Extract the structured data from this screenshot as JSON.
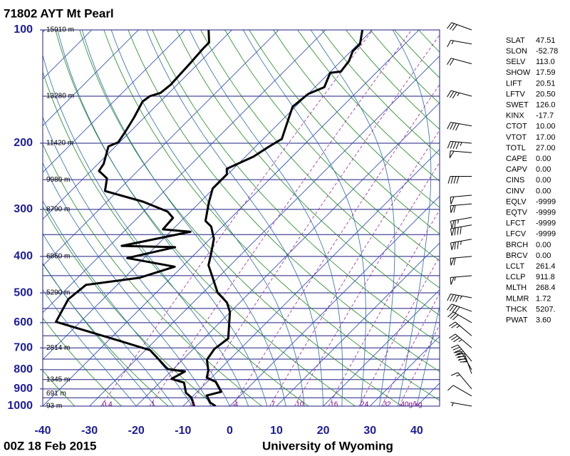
{
  "chart_data": {
    "type": "skewt",
    "title": "71802 AYT Mt Pearl",
    "date": "00Z 18 Feb 2015",
    "source": "University of Wyoming",
    "ylog": true,
    "ylim": [
      1000,
      100
    ],
    "yticks": [
      100,
      200,
      300,
      400,
      500,
      600,
      700,
      800,
      900,
      1000
    ],
    "isobars": [
      100,
      150,
      200,
      250,
      300,
      350,
      400,
      450,
      500,
      550,
      600,
      650,
      700,
      750,
      800,
      850,
      900,
      950,
      1000
    ],
    "xlim": [
      -40,
      44.9
    ],
    "xticks": [
      -40,
      -30,
      -20,
      -10,
      0,
      10,
      20,
      30,
      40
    ],
    "heights": {
      "pressure": [
        100,
        150,
        200,
        250,
        300,
        400,
        500,
        700,
        850,
        925,
        1000
      ],
      "labels": [
        "15910 m",
        "13280 m",
        "11420 m",
        "9980 m",
        "8790 m",
        "6860 m",
        "5290 m",
        "2814 m",
        "1345 m",
        "691 m",
        "93 m"
      ]
    },
    "mixing_ratios": [
      0.4,
      1,
      2,
      4,
      7,
      10,
      16,
      24,
      32,
      {
        "value": 40,
        "label": "40g/kg"
      }
    ],
    "series": [
      {
        "color": "#000000",
        "pressure": [
          100,
          109,
          114,
          121,
          129,
          130,
          142,
          148,
          160,
          179,
          195,
          204,
          217,
          234,
          242,
          256,
          264,
          288,
          322,
          333,
          359,
          396,
          422,
          452,
          498,
          531,
          562,
          661,
          705,
          753,
          804,
          840,
          862,
          916,
          937,
          979,
          1000
        ],
        "values": [
          -52.1,
          -49.6,
          -49.6,
          -48.3,
          -47.8,
          -49.8,
          -48.0,
          -50.0,
          -50.6,
          -48.0,
          -46.0,
          -47.1,
          -48.3,
          -51.4,
          -50.2,
          -50.2,
          -50.2,
          -48.0,
          -44.8,
          -42.4,
          -39.2,
          -36.4,
          -34.7,
          -31.5,
          -27.0,
          -22.7,
          -20.1,
          -14.8,
          -15.5,
          -14.8,
          -12.2,
          -11.0,
          -8.2,
          -4.9,
          -7.2,
          -4.9,
          -3.0
        ]
      },
      {
        "color": "#000000",
        "pressure": [
          100,
          108,
          112,
          123,
          140,
          147,
          150,
          155,
          171,
          187,
          199,
          204,
          227,
          237,
          248,
          268,
          286,
          304,
          316,
          339,
          344,
          375,
          378,
          404,
          426,
          456,
          476,
          520,
          597,
          669,
          710,
          797,
          809,
          846,
          866,
          922,
          948,
          1000
        ],
        "values": [
          -85.0,
          -82.2,
          -82.2,
          -81.8,
          -81.4,
          -81.8,
          -83.4,
          -83.8,
          -82.2,
          -81.0,
          -80.3,
          -81.5,
          -78.8,
          -78.3,
          -75.0,
          -72.7,
          -62.3,
          -54.9,
          -52.4,
          -52.1,
          -45.7,
          -57.4,
          -45.7,
          -53.6,
          -41.6,
          -46.8,
          -56.7,
          -57.4,
          -55.2,
          -37.9,
          -29.0,
          -21.2,
          -17.0,
          -18.3,
          -14.8,
          -12.2,
          -10.1,
          -7.6
        ]
      }
    ],
    "winds": {
      "pressure": [
        100,
        109,
        123,
        150,
        180,
        200,
        212,
        245,
        275,
        290,
        315,
        330,
        360,
        400,
        450,
        515,
        560,
        600,
        650,
        700,
        760,
        800,
        820,
        900,
        940,
        1000
      ],
      "direction": [
        290,
        280,
        285,
        285,
        280,
        275,
        275,
        270,
        265,
        265,
        260,
        260,
        260,
        265,
        265,
        280,
        290,
        300,
        310,
        310,
        320,
        330,
        340,
        320,
        300,
        280
      ],
      "speed": [
        30,
        15,
        20,
        35,
        40,
        45,
        50,
        40,
        50,
        60,
        65,
        80,
        75,
        60,
        55,
        45,
        40,
        30,
        25,
        35,
        40,
        45,
        40,
        15,
        10,
        5
      ]
    },
    "indices": {
      "labels": [
        "SLAT",
        "SLON",
        "SELV",
        "SHOW",
        "LIFT",
        "LFTV",
        "SWET",
        "KINX",
        "CTOT",
        "VTOT",
        "TOTL",
        "CAPE",
        "CAPV",
        "CINS",
        "CINV",
        "EQLV",
        "EQTV",
        "LFCT",
        "LFCV",
        "BRCH",
        "BRCV",
        "LCLT",
        "LCLP",
        "MLTH",
        "MLMR",
        "THCK",
        "PWAT"
      ],
      "values": [
        "47.51",
        "-52.78",
        "113.0",
        "17.59",
        "20.51",
        "20.50",
        "126.0",
        "-17.7",
        "10.00",
        "17.00",
        "27.00",
        "0.00",
        "0.00",
        "0.00",
        "0.00",
        "-9999",
        "-9999",
        "-9999",
        "-9999",
        "0.00",
        "0.00",
        "261.4",
        "911.8",
        "268.4",
        "1.72",
        "5207.",
        "3.60"
      ]
    }
  }
}
